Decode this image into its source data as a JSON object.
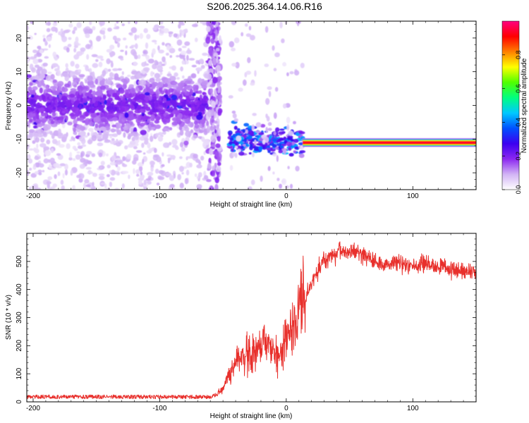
{
  "title": "S206.2025.364.14.06.R16",
  "chart_data": [
    {
      "type": "heatmap",
      "xlabel": "Height of straight line (km)",
      "ylabel": "Frequency (Hz)",
      "xlim": [
        -205,
        150
      ],
      "ylim": [
        -25,
        25
      ],
      "x_ticks": [
        -200,
        -100,
        0,
        100
      ],
      "y_ticks": [
        -20,
        -10,
        0,
        10,
        20
      ],
      "grid": false,
      "colorbar": {
        "label": "Normalized spectral amplitude",
        "range": [
          0,
          1
        ],
        "ticks": [
          "0.0",
          "0.2",
          "0.4",
          "0.6",
          "0.8"
        ],
        "colors": [
          "#ffffff",
          "#d2b4f5",
          "#8c28f0",
          "#3c00f0",
          "#0050ff",
          "#00c8ff",
          "#00ff80",
          "#50ff00",
          "#ffff00",
          "#ff8000",
          "#ff0000",
          "#ff0080"
        ]
      },
      "regions": [
        {
          "x_range": [
            -205,
            -62
          ],
          "freq_center": 0,
          "freq_spread": 5,
          "background_freq_range": [
            -25,
            25
          ],
          "amplitude": 0.15
        },
        {
          "x_range": [
            -62,
            -52
          ],
          "freq_center": 0,
          "freq_range": [
            -25,
            25
          ],
          "amplitude": 0.15
        },
        {
          "x_range": [
            -45,
            13
          ],
          "freq_center": -10.5,
          "freq_spread": 2,
          "amplitude": 0.35
        },
        {
          "x_range": [
            13,
            150
          ],
          "freq_center": -11,
          "band_width": 2.5,
          "amplitude": 0.95
        }
      ]
    },
    {
      "type": "line",
      "xlabel": "Height of straight line (km)",
      "ylabel": "SNR (10 * v/v)",
      "xlim": [
        -205,
        150
      ],
      "ylim": [
        0,
        600
      ],
      "x_ticks": [
        -200,
        -100,
        0,
        100
      ],
      "y_ticks": [
        0,
        100,
        200,
        300,
        400,
        500
      ],
      "series": [
        {
          "color": "#e8302c",
          "x": [
            -205,
            -180,
            -160,
            -140,
            -120,
            -100,
            -80,
            -60,
            -55,
            -50,
            -45,
            -40,
            -35,
            -30,
            -25,
            -20,
            -15,
            -10,
            -5,
            0,
            5,
            10,
            15,
            20,
            25,
            30,
            40,
            50,
            60,
            70,
            80,
            90,
            100,
            110,
            120,
            130,
            140,
            150
          ],
          "y": [
            18,
            18,
            18,
            18,
            18,
            18,
            18,
            18,
            25,
            50,
            100,
            140,
            165,
            170,
            175,
            200,
            205,
            170,
            160,
            225,
            290,
            330,
            360,
            420,
            470,
            500,
            530,
            535,
            525,
            500,
            490,
            500,
            480,
            490,
            480,
            475,
            465,
            465
          ]
        }
      ]
    }
  ]
}
